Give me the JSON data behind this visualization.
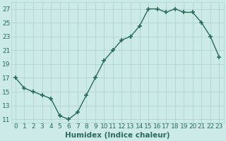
{
  "x": [
    0,
    1,
    2,
    3,
    4,
    5,
    6,
    7,
    8,
    9,
    10,
    11,
    12,
    13,
    14,
    15,
    16,
    17,
    18,
    19,
    20,
    21,
    22,
    23
  ],
  "y": [
    17,
    15.5,
    15,
    14.5,
    14,
    11.5,
    11,
    12,
    14.5,
    17,
    19.5,
    21,
    22.5,
    23,
    24.5,
    27,
    27,
    26.5,
    27,
    26.5,
    26.5,
    25,
    23,
    20
  ],
  "line_color": "#2a6b5a",
  "marker": "+",
  "marker_size": 5,
  "marker_lw": 1.2,
  "bg_color": "#cceae7",
  "grid_color": "#b0d4d0",
  "tick_color": "#2a6b5a",
  "xlabel": "Humidex (Indice chaleur)",
  "ylim": [
    10.5,
    28
  ],
  "xlim": [
    -0.5,
    23.5
  ],
  "yticks": [
    11,
    13,
    15,
    17,
    19,
    21,
    23,
    25,
    27
  ],
  "xticks": [
    0,
    1,
    2,
    3,
    4,
    5,
    6,
    7,
    8,
    9,
    10,
    11,
    12,
    13,
    14,
    15,
    16,
    17,
    18,
    19,
    20,
    21,
    22,
    23
  ],
  "xlabel_fontsize": 7.5,
  "tick_fontsize": 6.5,
  "line_width": 1.0
}
